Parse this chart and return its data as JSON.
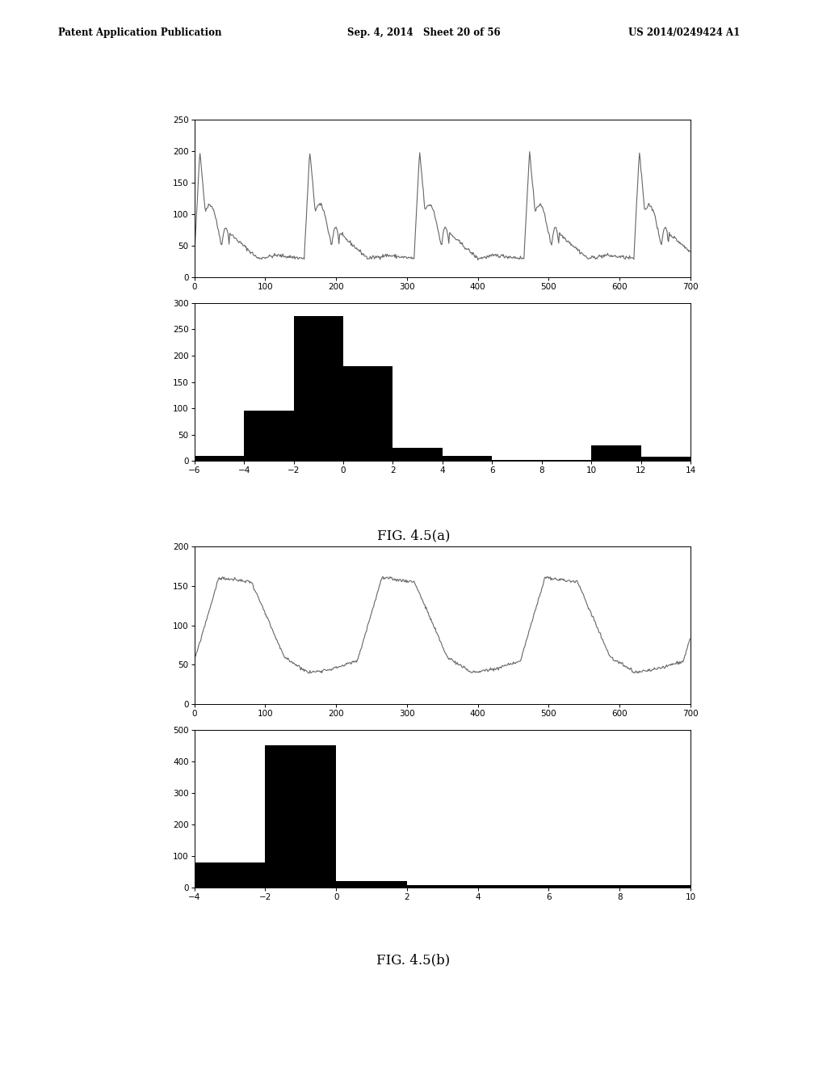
{
  "header_left": "Patent Application Publication",
  "header_mid": "Sep. 4, 2014   Sheet 20 of 56",
  "header_right": "US 2014/0249424 A1",
  "fig_a_caption": "FIG. 4.5(a)",
  "fig_b_caption": "FIG. 4.5(b)",
  "bg_color": "#ffffff",
  "line_color": "#666666",
  "bar_color": "#000000",
  "fig_a_wave": {
    "xlim": [
      0,
      700
    ],
    "ylim": [
      0,
      250
    ],
    "xticks": [
      0,
      100,
      200,
      300,
      400,
      500,
      600,
      700
    ],
    "yticks": [
      0,
      50,
      100,
      150,
      200,
      250
    ]
  },
  "fig_a_hist": {
    "xlim": [
      -6,
      14
    ],
    "ylim": [
      0,
      300
    ],
    "xticks": [
      -6,
      -4,
      -2,
      0,
      2,
      4,
      6,
      8,
      10,
      12,
      14
    ],
    "yticks": [
      0,
      50,
      100,
      150,
      200,
      250,
      300
    ],
    "bin_edges": [
      -6,
      -4,
      -2,
      0,
      2,
      4,
      6,
      8,
      10,
      12,
      14
    ],
    "heights": [
      10,
      95,
      275,
      180,
      25,
      10,
      2,
      2,
      30,
      8
    ]
  },
  "fig_b_wave": {
    "xlim": [
      0,
      700
    ],
    "ylim": [
      0,
      200
    ],
    "xticks": [
      0,
      100,
      200,
      300,
      400,
      500,
      600,
      700
    ],
    "yticks": [
      0,
      50,
      100,
      150,
      200
    ]
  },
  "fig_b_hist": {
    "xlim": [
      -4,
      10
    ],
    "ylim": [
      0,
      500
    ],
    "xticks": [
      -4,
      -2,
      0,
      2,
      4,
      6,
      8,
      10
    ],
    "yticks": [
      0,
      100,
      200,
      300,
      400,
      500
    ],
    "bin_edges": [
      -4,
      -2,
      0,
      2,
      4,
      6,
      8,
      10
    ],
    "heights": [
      80,
      450,
      20,
      8,
      8,
      8,
      8
    ]
  }
}
